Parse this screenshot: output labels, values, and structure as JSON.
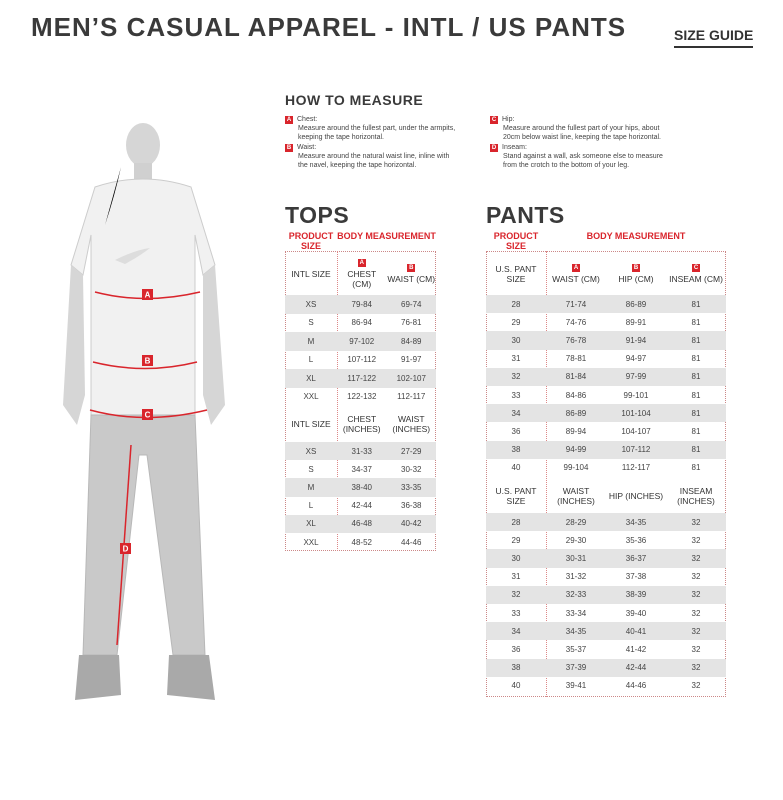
{
  "title": "MEN’S CASUAL APPAREL - INTL / US PANTS",
  "size_guide": "SIZE GUIDE",
  "accent": "#d9252c",
  "how_to_measure": {
    "heading": "HOW TO MEASURE",
    "items": [
      {
        "badge": "A",
        "label": "Chest:",
        "desc": "Measure around the fullest part, under the armpits, keeping the tape horizontal."
      },
      {
        "badge": "B",
        "label": "Waist:",
        "desc": "Measure around the natural waist line, inline with the navel, keeping the tape horizontal."
      },
      {
        "badge": "C",
        "label": "Hip:",
        "desc": "Measure around the fullest part of your hips, about 20cm below waist line, keeping the tape horizontal."
      },
      {
        "badge": "D",
        "label": "Inseam:",
        "desc": "Stand against a wall, ask someone else to measure from the crotch to the bottom of your leg."
      }
    ]
  },
  "figure_labels": [
    "A",
    "B",
    "C",
    "D"
  ],
  "tops": {
    "heading": "TOPS",
    "product_size": "PRODUCT SIZE",
    "body_measurement": "BODY MEASUREMENT",
    "cm": {
      "headers": [
        {
          "badge": "",
          "text": "INTL SIZE"
        },
        {
          "badge": "A",
          "text": "CHEST (CM)"
        },
        {
          "badge": "B",
          "text": "WAIST (CM)"
        }
      ],
      "rows": [
        [
          "XS",
          "79-84",
          "69-74"
        ],
        [
          "S",
          "86-94",
          "76-81"
        ],
        [
          "M",
          "97-102",
          "84-89"
        ],
        [
          "L",
          "107-112",
          "91-97"
        ],
        [
          "XL",
          "117-122",
          "102-107"
        ],
        [
          "XXL",
          "122-132",
          "112-117"
        ]
      ]
    },
    "inches": {
      "headers": [
        {
          "badge": "",
          "text": "INTL SIZE"
        },
        {
          "badge": "",
          "text": "CHEST (INCHES)"
        },
        {
          "badge": "",
          "text": "WAIST (INCHES)"
        }
      ],
      "rows": [
        [
          "XS",
          "31-33",
          "27-29"
        ],
        [
          "S",
          "34-37",
          "30-32"
        ],
        [
          "M",
          "38-40",
          "33-35"
        ],
        [
          "L",
          "42-44",
          "36-38"
        ],
        [
          "XL",
          "46-48",
          "40-42"
        ],
        [
          "XXL",
          "48-52",
          "44-46"
        ]
      ]
    }
  },
  "pants": {
    "heading": "PANTS",
    "product_size": "PRODUCT SIZE",
    "body_measurement": "BODY MEASUREMENT",
    "cm": {
      "headers": [
        {
          "badge": "",
          "text": "U.S. PANT SIZE"
        },
        {
          "badge": "A",
          "text": "WAIST (CM)"
        },
        {
          "badge": "B",
          "text": "HIP (CM)"
        },
        {
          "badge": "C",
          "text": "INSEAM (CM)"
        }
      ],
      "rows": [
        [
          "28",
          "71-74",
          "86-89",
          "81"
        ],
        [
          "29",
          "74-76",
          "89-91",
          "81"
        ],
        [
          "30",
          "76-78",
          "91-94",
          "81"
        ],
        [
          "31",
          "78-81",
          "94-97",
          "81"
        ],
        [
          "32",
          "81-84",
          "97-99",
          "81"
        ],
        [
          "33",
          "84-86",
          "99-101",
          "81"
        ],
        [
          "34",
          "86-89",
          "101-104",
          "81"
        ],
        [
          "36",
          "89-94",
          "104-107",
          "81"
        ],
        [
          "38",
          "94-99",
          "107-112",
          "81"
        ],
        [
          "40",
          "99-104",
          "112-117",
          "81"
        ]
      ]
    },
    "inches": {
      "headers": [
        {
          "badge": "",
          "text": "U.S. PANT SIZE"
        },
        {
          "badge": "",
          "text": "WAIST (INCHES)"
        },
        {
          "badge": "",
          "text": "HIP (INCHES)"
        },
        {
          "badge": "",
          "text": "INSEAM (INCHES)"
        }
      ],
      "rows": [
        [
          "28",
          "28-29",
          "34-35",
          "32"
        ],
        [
          "29",
          "29-30",
          "35-36",
          "32"
        ],
        [
          "30",
          "30-31",
          "36-37",
          "32"
        ],
        [
          "31",
          "31-32",
          "37-38",
          "32"
        ],
        [
          "32",
          "32-33",
          "38-39",
          "32"
        ],
        [
          "33",
          "33-34",
          "39-40",
          "32"
        ],
        [
          "34",
          "34-35",
          "40-41",
          "32"
        ],
        [
          "36",
          "35-37",
          "41-42",
          "32"
        ],
        [
          "38",
          "37-39",
          "42-44",
          "32"
        ],
        [
          "40",
          "39-41",
          "44-46",
          "32"
        ]
      ]
    }
  }
}
